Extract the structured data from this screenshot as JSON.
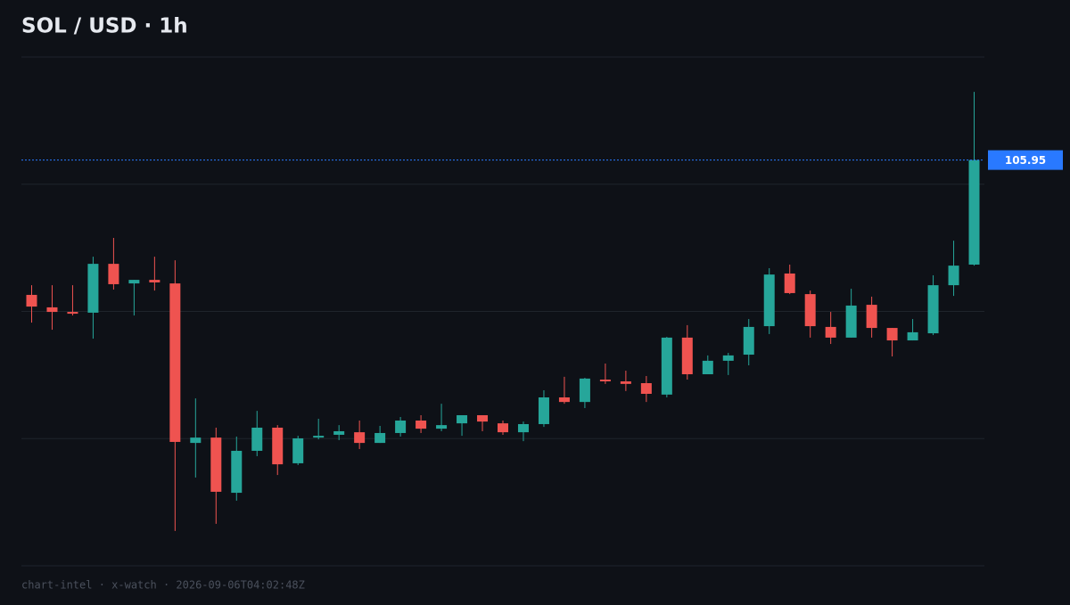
{
  "chart_data": {
    "type": "candlestick",
    "title": "SOL / USD  ·  1h",
    "footer": "chart-intel · x-watch · 2026-09-06T04:02:48Z",
    "last_price": 105.95,
    "up_color": "#26a69a",
    "down_color": "#ef5350",
    "last_price_color": "#2979ff",
    "ylim": [
      90,
      110
    ],
    "ygrid": [
      90,
      95,
      100,
      105,
      110
    ],
    "open": [
      100.65,
      100.16,
      99.98,
      99.95,
      101.87,
      101.1,
      101.24,
      101.1,
      94.83,
      95.04,
      92.87,
      94.52,
      95.43,
      94.03,
      95.04,
      95.15,
      95.25,
      94.83,
      95.22,
      95.71,
      95.39,
      95.6,
      95.92,
      95.6,
      95.25,
      95.57,
      96.62,
      96.44,
      97.32,
      97.25,
      97.18,
      96.73,
      98.97,
      97.53,
      98.06,
      98.3,
      99.42,
      101.49,
      100.68,
      99.39,
      98.97,
      100.26,
      99.35,
      98.86,
      99.14,
      101.03,
      101.84
    ],
    "high": [
      101.03,
      101.03,
      101.03,
      102.15,
      102.89,
      101.24,
      102.15,
      102.01,
      96.58,
      95.43,
      95.08,
      96.09,
      95.53,
      95.11,
      95.78,
      95.53,
      95.71,
      95.5,
      95.85,
      95.92,
      96.37,
      95.88,
      95.92,
      95.71,
      95.67,
      96.9,
      97.43,
      97.39,
      97.95,
      97.67,
      97.46,
      99.0,
      99.46,
      98.27,
      98.37,
      99.7,
      101.7,
      101.84,
      100.82,
      99.98,
      100.89,
      100.58,
      99.35,
      99.7,
      101.42,
      102.78,
      108.63
    ],
    "low": [
      99.56,
      99.28,
      99.84,
      98.93,
      100.86,
      99.84,
      100.82,
      91.37,
      93.47,
      91.65,
      92.56,
      94.31,
      93.57,
      93.96,
      94.97,
      94.94,
      94.59,
      94.83,
      95.08,
      95.22,
      95.29,
      95.11,
      95.29,
      95.15,
      94.9,
      95.46,
      96.37,
      96.2,
      97.15,
      96.87,
      96.44,
      96.62,
      97.32,
      97.53,
      97.5,
      97.88,
      99.11,
      100.68,
      98.97,
      98.72,
      98.97,
      98.97,
      98.23,
      98.86,
      99.07,
      100.61,
      101.8
    ],
    "close": [
      100.19,
      99.98,
      99.91,
      101.87,
      101.07,
      101.24,
      101.14,
      94.87,
      95.04,
      92.91,
      94.52,
      95.43,
      93.99,
      95.01,
      95.11,
      95.29,
      94.83,
      95.22,
      95.71,
      95.39,
      95.53,
      95.92,
      95.67,
      95.25,
      95.57,
      96.62,
      96.44,
      97.36,
      97.25,
      97.15,
      96.76,
      98.97,
      97.53,
      98.06,
      98.27,
      99.39,
      101.45,
      100.72,
      99.42,
      98.97,
      100.23,
      99.35,
      98.86,
      99.18,
      101.03,
      101.8,
      105.95
    ]
  }
}
